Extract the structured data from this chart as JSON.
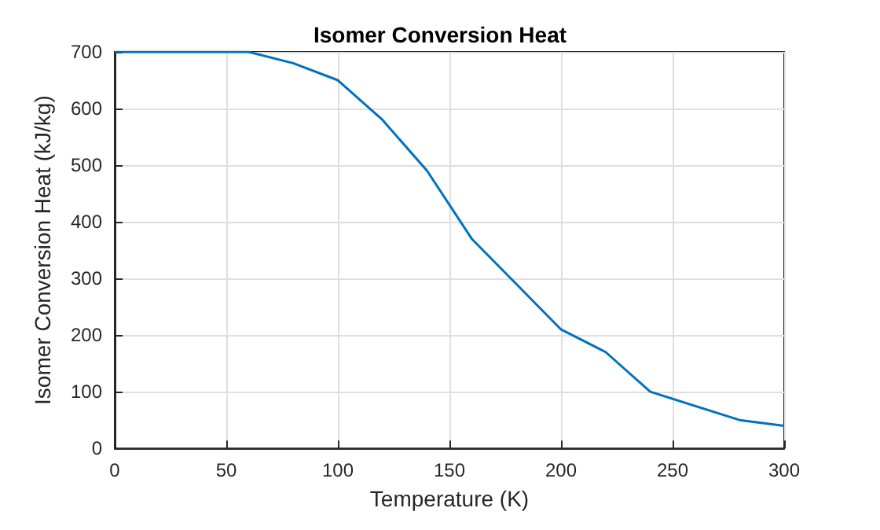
{
  "chart_data": {
    "type": "line",
    "title": "Isomer Conversion Heat",
    "xlabel": "Temperature (K)",
    "ylabel": "Isomer Conversion Heat (kJ/kg)",
    "x": [
      0,
      20,
      40,
      60,
      80,
      100,
      120,
      140,
      160,
      180,
      200,
      220,
      240,
      280,
      300
    ],
    "series": [
      {
        "color": "#0072bd",
        "values": [
          700,
          700,
          700,
          700,
          680,
          650,
          580,
          490,
          370,
          290,
          210,
          170,
          100,
          50,
          40
        ]
      }
    ],
    "xlim": [
      0,
      300
    ],
    "xticks": [
      0,
      50,
      100,
      150,
      200,
      250,
      300
    ],
    "ylim": [
      0,
      700
    ],
    "yticks": [
      0,
      100,
      200,
      300,
      400,
      500,
      600,
      700
    ],
    "grid": true,
    "marker": "none",
    "line_style": "solid"
  }
}
